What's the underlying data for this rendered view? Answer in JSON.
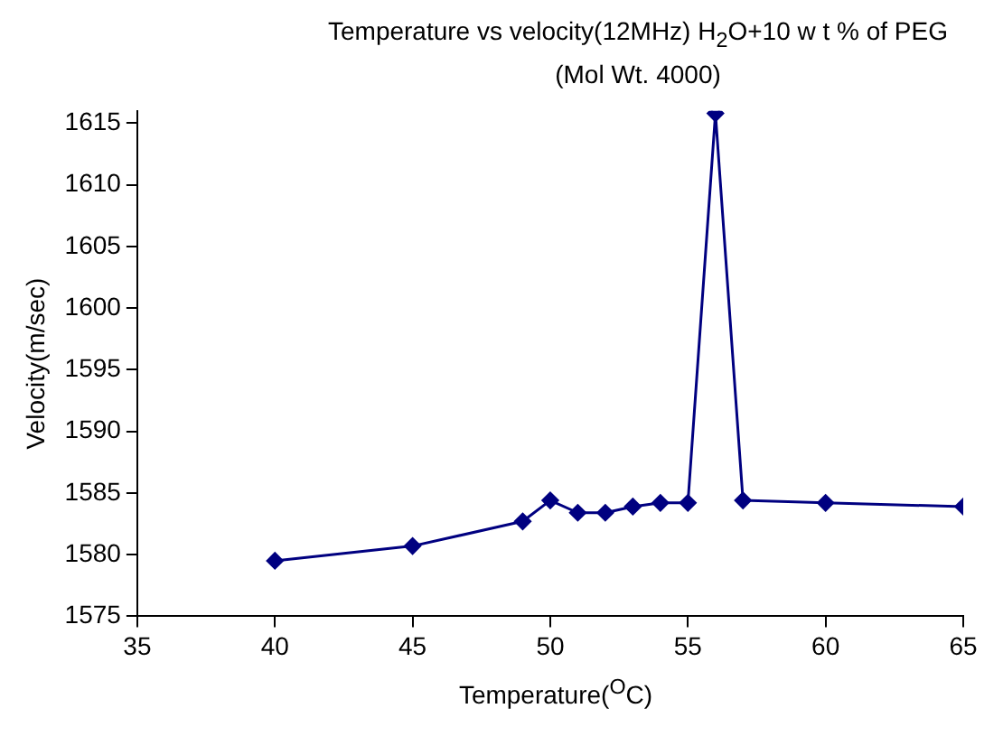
{
  "chart_data": {
    "type": "line",
    "title": "Temperature vs velocity(12MHz) H$_{2}$O+10 w t % of PEG (Mol Wt. 4000)",
    "xlabel": "Temperature($^{O}$C)",
    "ylabel": "Velocity(m/sec)",
    "x": [
      40,
      45,
      49,
      50,
      51,
      52,
      53,
      54,
      55,
      56,
      57,
      60,
      65
    ],
    "series": [
      {
        "color": "#000080",
        "values": [
          1579.5,
          1580.7,
          1582.7,
          1584.4,
          1583.4,
          1583.4,
          1583.9,
          1584.2,
          1584.2,
          1615.8,
          1584.4,
          1584.2,
          1583.9
        ]
      }
    ],
    "xlim": [
      35,
      65
    ],
    "xticks": [
      35,
      40,
      45,
      50,
      55,
      60,
      65
    ],
    "ylim": [
      1575,
      1616
    ],
    "yticks": [
      1575,
      1580,
      1585,
      1590,
      1595,
      1600,
      1605,
      1610,
      1615
    ],
    "grid": false,
    "legend": false,
    "marker": "diamond",
    "line_style": "solid"
  }
}
